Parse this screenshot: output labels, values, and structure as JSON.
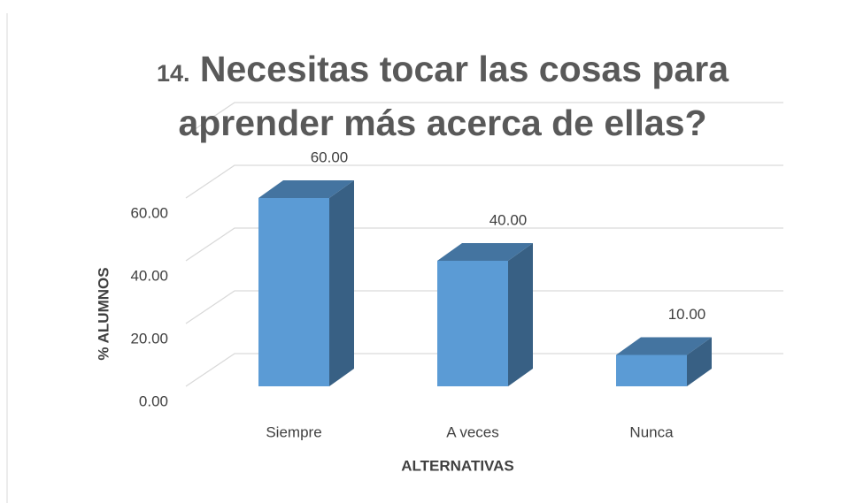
{
  "chart_data": {
    "type": "bar3d",
    "title_number": "14.",
    "title": "Necesitas tocar las cosas para aprender más acerca de ellas?",
    "x_label": "ALTERNATIVAS",
    "y_label": "% ALUMNOS",
    "categories": [
      "Siempre",
      "A veces",
      "Nunca"
    ],
    "values": [
      60,
      40,
      10
    ],
    "value_labels": [
      "60.00",
      "40.00",
      "10.00"
    ],
    "color": "#5b9bd5",
    "ylim": [
      0,
      80
    ],
    "yticks": [
      {
        "value": 0,
        "label": "0.00"
      },
      {
        "value": 20,
        "label": "20.00"
      },
      {
        "value": 40,
        "label": "40.00"
      },
      {
        "value": 60,
        "label": "60.00"
      }
    ],
    "grid": true
  }
}
